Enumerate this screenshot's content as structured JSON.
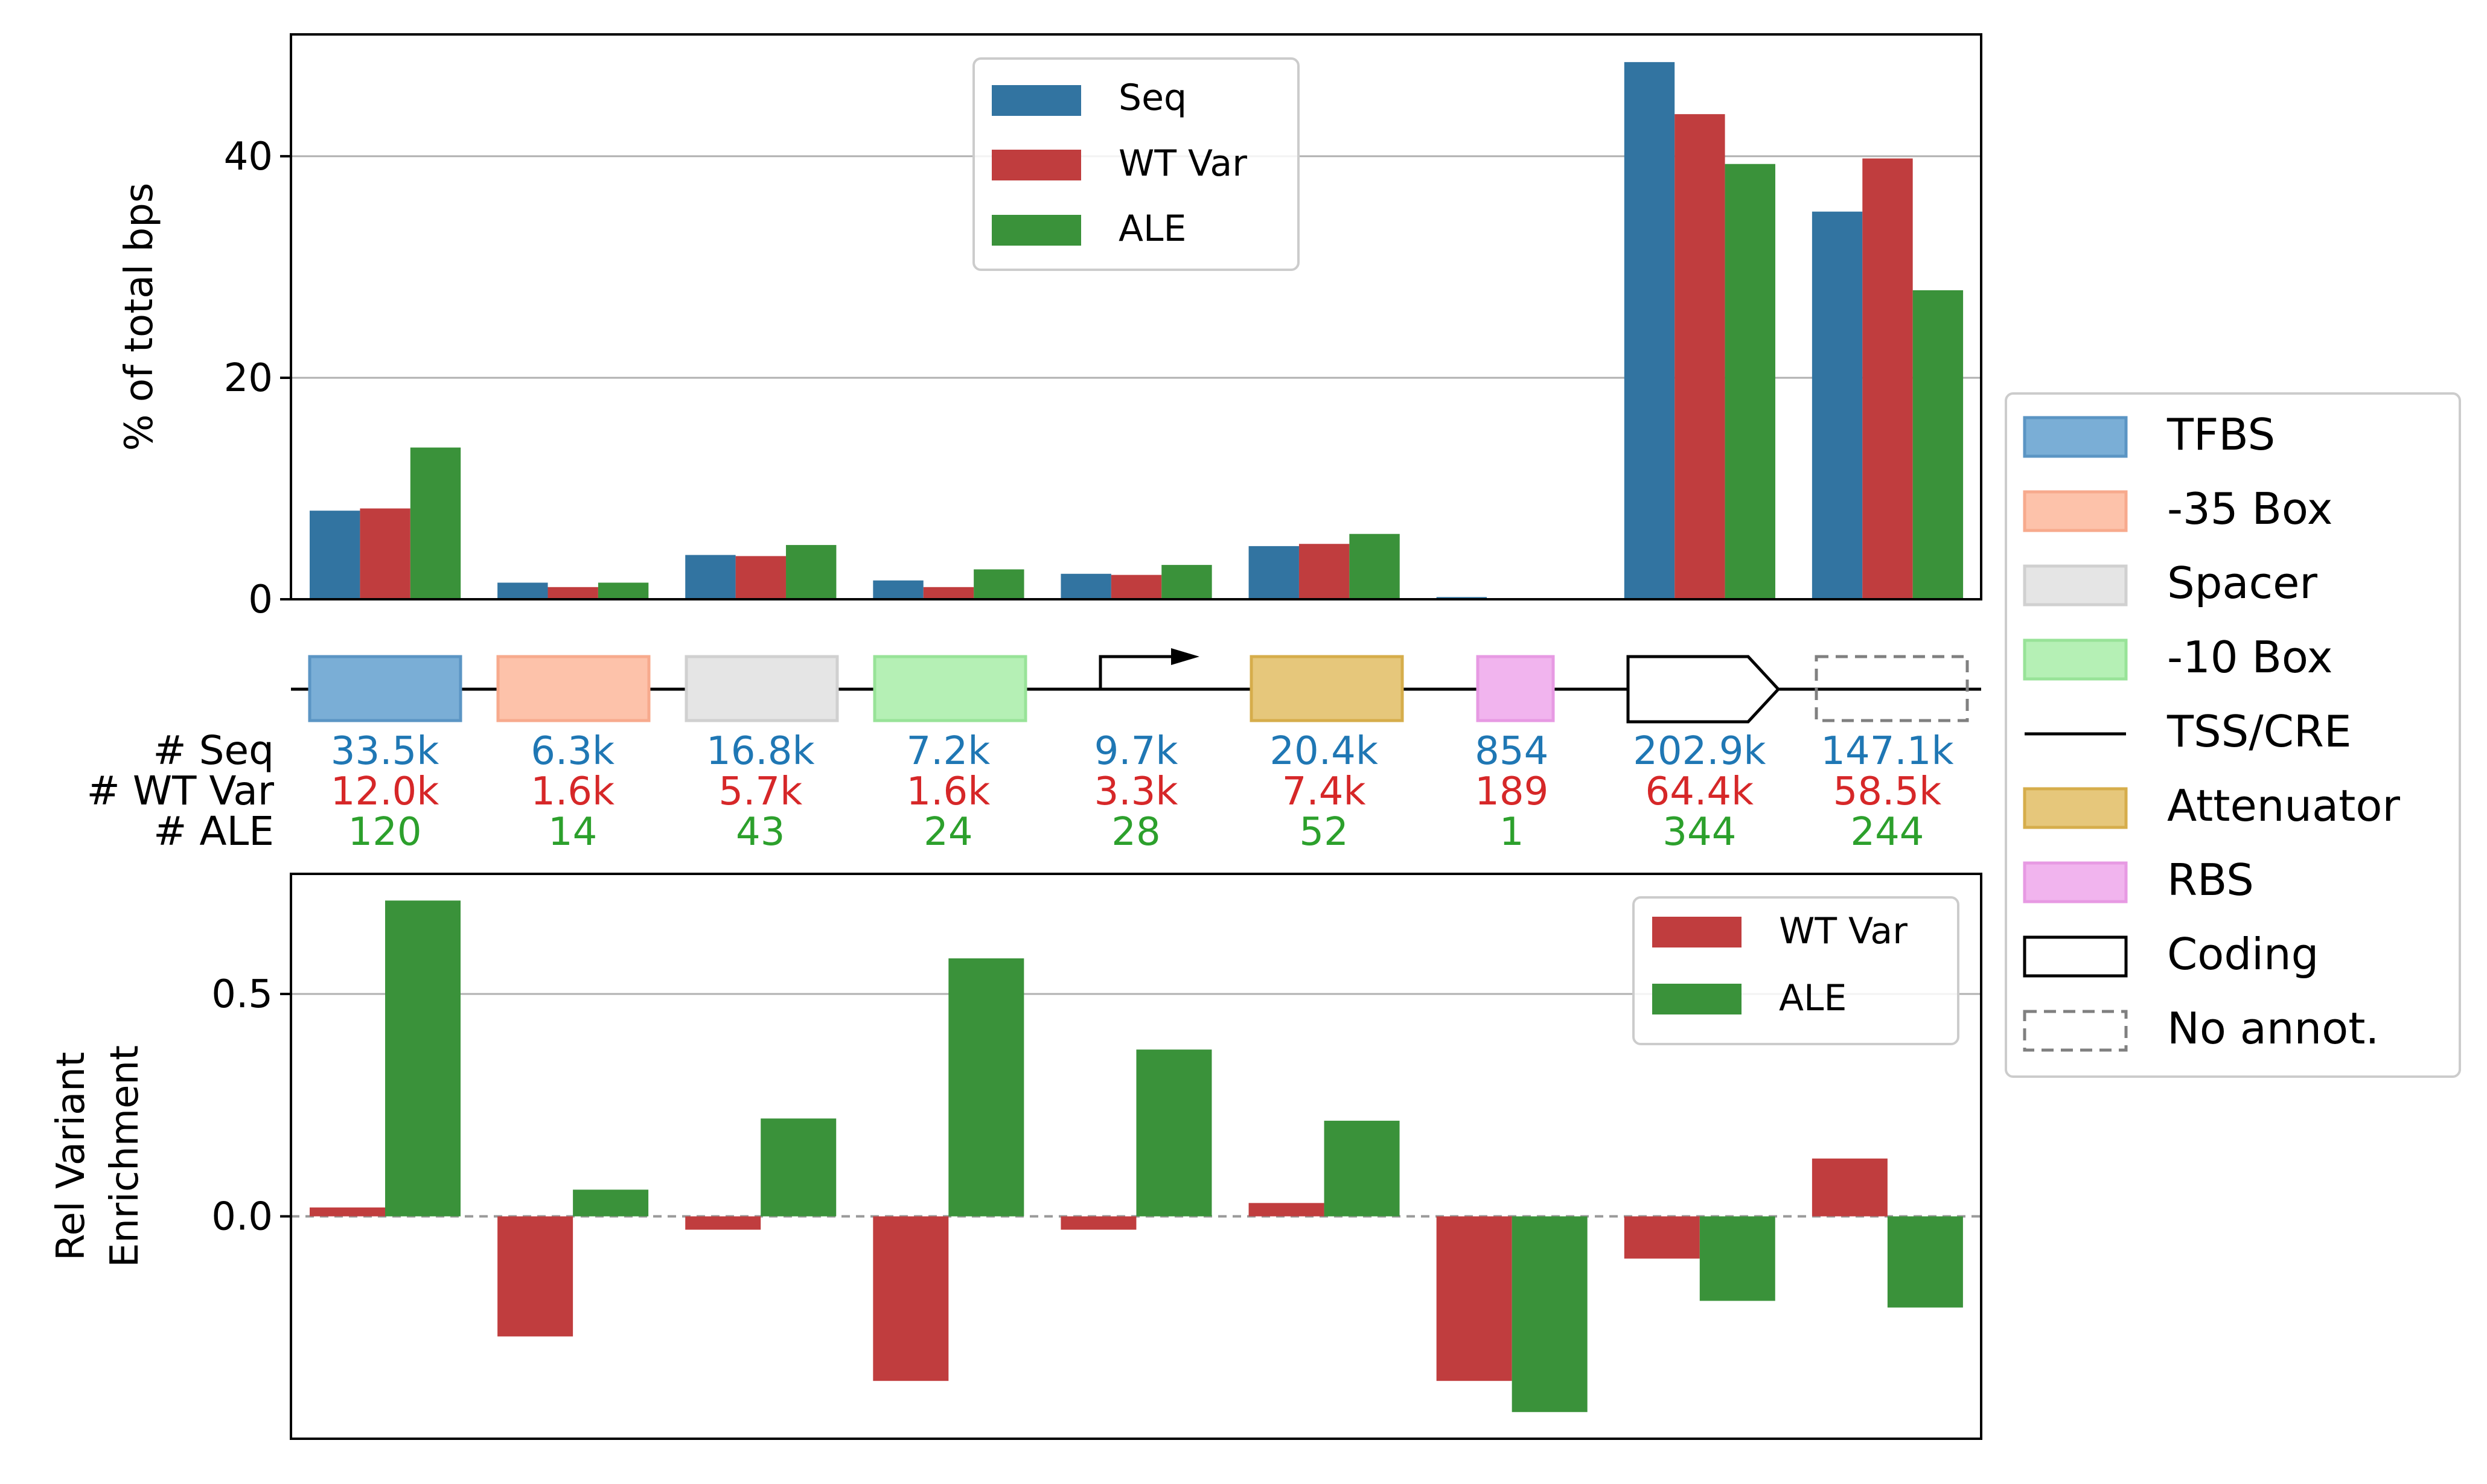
{
  "colors": {
    "seq": "#3274a1",
    "wt_var": "#c03d3e",
    "ale": "#3a923a",
    "seq_text": "#1f77b4",
    "wt_text": "#d62728",
    "ale_text": "#2ca02c",
    "tfbs": "#7aaed6",
    "box35": "#fdc2aa",
    "spacer": "#e5e5e5",
    "box10": "#b5f0b5",
    "attenuator": "#e6c77b",
    "rbs": "#f1b4ee",
    "grid": "#b0b0b0"
  },
  "chart_data": [
    {
      "type": "bar",
      "categories": [
        "TFBS",
        "-35 Box",
        "Spacer",
        "-10 Box",
        "TSS/CRE",
        "Attenuator",
        "RBS",
        "Coding",
        "No annot."
      ],
      "series": [
        {
          "name": "Seq",
          "values": [
            8.0,
            1.5,
            4.0,
            1.7,
            2.3,
            4.8,
            0.2,
            48.5,
            35.0
          ]
        },
        {
          "name": "WT Var",
          "values": [
            8.2,
            1.1,
            3.9,
            1.1,
            2.2,
            5.0,
            0.05,
            43.8,
            39.8
          ]
        },
        {
          "name": "ALE",
          "values": [
            13.7,
            1.5,
            4.9,
            2.7,
            3.1,
            5.9,
            0.05,
            39.3,
            27.9
          ]
        }
      ],
      "ylabel": "% of total bps",
      "ylim": [
        0,
        51
      ],
      "yticks": [
        "0",
        "20",
        "40"
      ],
      "ytick_values": [
        0,
        20,
        40
      ],
      "grid": "horizontal",
      "legend_position": "top-center"
    },
    {
      "type": "table",
      "row_labels": [
        "# Seq",
        "# WT Var",
        "# ALE"
      ],
      "rows": [
        [
          "33.5k",
          "6.3k",
          "16.8k",
          "7.2k",
          "9.7k",
          "20.4k",
          "854",
          "202.9k",
          "147.1k"
        ],
        [
          "12.0k",
          "1.6k",
          "5.7k",
          "1.6k",
          "3.3k",
          "7.4k",
          "189",
          "64.4k",
          "58.5k"
        ],
        [
          "120",
          "14",
          "43",
          "24",
          "28",
          "52",
          "1",
          "344",
          "244"
        ]
      ]
    },
    {
      "type": "bar",
      "categories": [
        "TFBS",
        "-35 Box",
        "Spacer",
        "-10 Box",
        "TSS/CRE",
        "Attenuator",
        "RBS",
        "Coding",
        "No annot."
      ],
      "series": [
        {
          "name": "WT Var",
          "values": [
            0.02,
            -0.27,
            -0.03,
            -0.37,
            -0.03,
            0.03,
            -0.37,
            -0.095,
            0.13
          ]
        },
        {
          "name": "ALE",
          "values": [
            0.71,
            0.06,
            0.22,
            0.58,
            0.375,
            0.215,
            -0.44,
            -0.19,
            -0.205
          ]
        }
      ],
      "ylabel": "Rel Variant Enrichment",
      "ylabel_lines": [
        "Rel Variant",
        "Enrichment"
      ],
      "ylim": [
        -0.5,
        0.77
      ],
      "yticks": [
        "0.0",
        "0.5"
      ],
      "ytick_values": [
        0.0,
        0.5
      ],
      "grid": "horizontal",
      "legend_position": "top-right"
    }
  ],
  "legends": {
    "top": [
      "Seq",
      "WT Var",
      "ALE"
    ],
    "bottom": [
      "WT Var",
      "ALE"
    ],
    "region": [
      "TFBS",
      "-35 Box",
      "Spacer",
      "-10 Box",
      "TSS/CRE",
      "Attenuator",
      "RBS",
      "Coding",
      "No annot."
    ]
  }
}
